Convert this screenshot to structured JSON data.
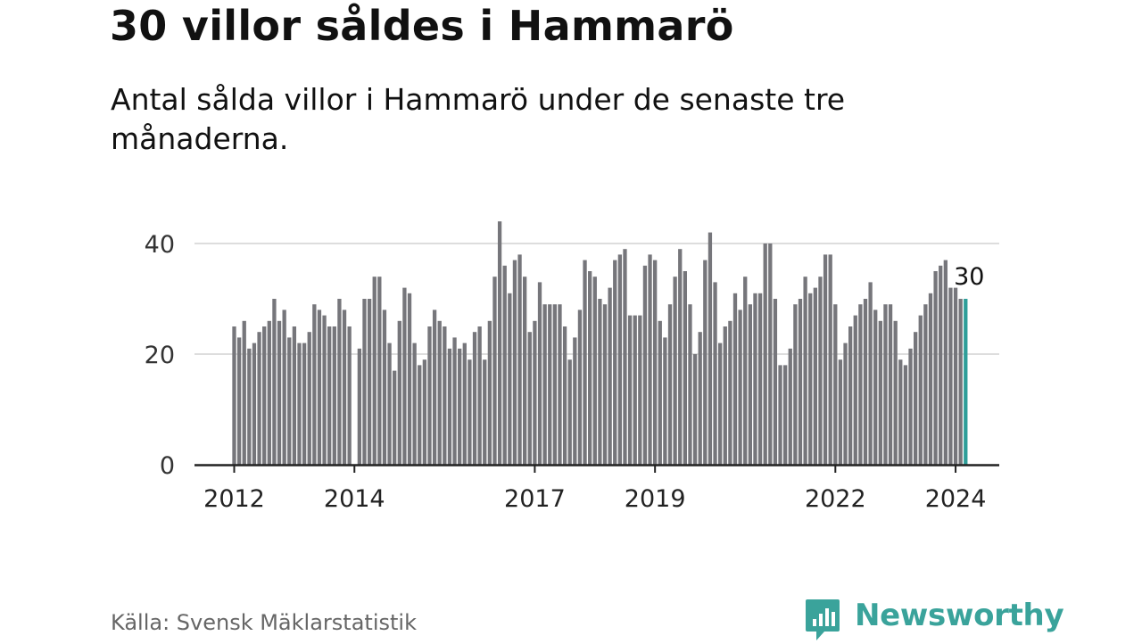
{
  "title": "30 villor såldes i Hammarö",
  "subtitle": "Antal sålda villor i Hammarö under de senaste tre månaderna.",
  "source": "Källa: Svensk Mäklarstatistik",
  "brand": {
    "name": "Newsworthy",
    "icon": "newsworthy-chart-icon",
    "color": "#3aa39b"
  },
  "colors": {
    "bar": "#76767b",
    "highlight": "#2e9e99",
    "grid": "#dddddd",
    "axis": "#222222"
  },
  "chart_data": {
    "type": "bar",
    "title": "30 villor såldes i Hammarö",
    "ylim": [
      0,
      45
    ],
    "yticks": [
      0,
      20,
      40
    ],
    "grid": true,
    "start": "2012-01",
    "xtick_labels": [
      {
        "label": "2012",
        "index": 0
      },
      {
        "label": "2014",
        "index": 24
      },
      {
        "label": "2017",
        "index": 60
      },
      {
        "label": "2019",
        "index": 84
      },
      {
        "label": "2022",
        "index": 120
      },
      {
        "label": "2024",
        "index": 144
      }
    ],
    "values": [
      25,
      23,
      26,
      21,
      22,
      24,
      25,
      26,
      30,
      26,
      28,
      23,
      25,
      22,
      22,
      24,
      29,
      28,
      27,
      25,
      25,
      30,
      28,
      25,
      0,
      21,
      30,
      30,
      34,
      34,
      28,
      22,
      17,
      26,
      32,
      31,
      22,
      18,
      19,
      25,
      28,
      26,
      25,
      21,
      23,
      21,
      22,
      19,
      24,
      25,
      19,
      26,
      34,
      44,
      36,
      31,
      37,
      38,
      34,
      24,
      26,
      33,
      29,
      29,
      29,
      29,
      25,
      19,
      23,
      28,
      37,
      35,
      34,
      30,
      29,
      32,
      37,
      38,
      39,
      27,
      27,
      27,
      36,
      38,
      37,
      26,
      23,
      29,
      34,
      39,
      35,
      29,
      20,
      24,
      37,
      42,
      33,
      22,
      25,
      26,
      31,
      28,
      34,
      29,
      31,
      31,
      40,
      40,
      30,
      18,
      18,
      21,
      29,
      30,
      34,
      31,
      32,
      34,
      38,
      38,
      29,
      19,
      22,
      25,
      27,
      29,
      30,
      33,
      28,
      26,
      29,
      29,
      26,
      19,
      18,
      21,
      24,
      27,
      29,
      31,
      35,
      36,
      37,
      32,
      32,
      30,
      30
    ],
    "highlight_index": 146,
    "annotation": "30"
  }
}
